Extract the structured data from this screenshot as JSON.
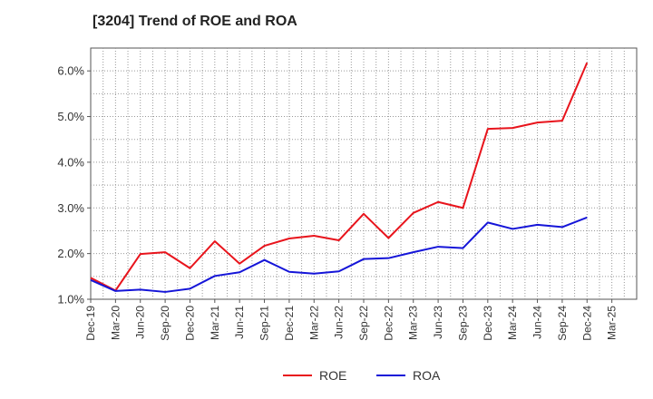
{
  "chart_data": {
    "type": "line",
    "title": "[3204]  Trend of ROE and ROA",
    "xlabel": "",
    "ylabel": "",
    "ylim": [
      1.0,
      6.5
    ],
    "yticks": [
      1.0,
      2.0,
      3.0,
      4.0,
      5.0,
      6.0
    ],
    "ytick_labels": [
      "1.0%",
      "2.0%",
      "3.0%",
      "4.0%",
      "5.0%",
      "6.0%"
    ],
    "categories": [
      "Dec-19",
      "Mar-20",
      "Jun-20",
      "Sep-20",
      "Dec-20",
      "Mar-21",
      "Jun-21",
      "Sep-21",
      "Dec-21",
      "Mar-22",
      "Jun-22",
      "Sep-22",
      "Dec-22",
      "Mar-23",
      "Jun-23",
      "Sep-23",
      "Dec-23",
      "Mar-24",
      "Jun-24",
      "Sep-24",
      "Dec-24",
      "Mar-25"
    ],
    "grid": true,
    "legend_position": "bottom",
    "series": [
      {
        "name": "ROE",
        "color": "#e8141c",
        "values": [
          1.47,
          1.19,
          1.99,
          2.03,
          1.68,
          2.27,
          1.78,
          2.17,
          2.33,
          2.39,
          2.29,
          2.87,
          2.34,
          2.89,
          3.13,
          3.0,
          4.73,
          4.75,
          4.87,
          4.91,
          6.18,
          null
        ]
      },
      {
        "name": "ROA",
        "color": "#1515d8",
        "values": [
          1.42,
          1.18,
          1.21,
          1.16,
          1.23,
          1.51,
          1.59,
          1.86,
          1.6,
          1.56,
          1.61,
          1.88,
          1.9,
          2.03,
          2.15,
          2.12,
          2.68,
          2.54,
          2.63,
          2.58,
          2.79,
          null
        ]
      }
    ]
  }
}
